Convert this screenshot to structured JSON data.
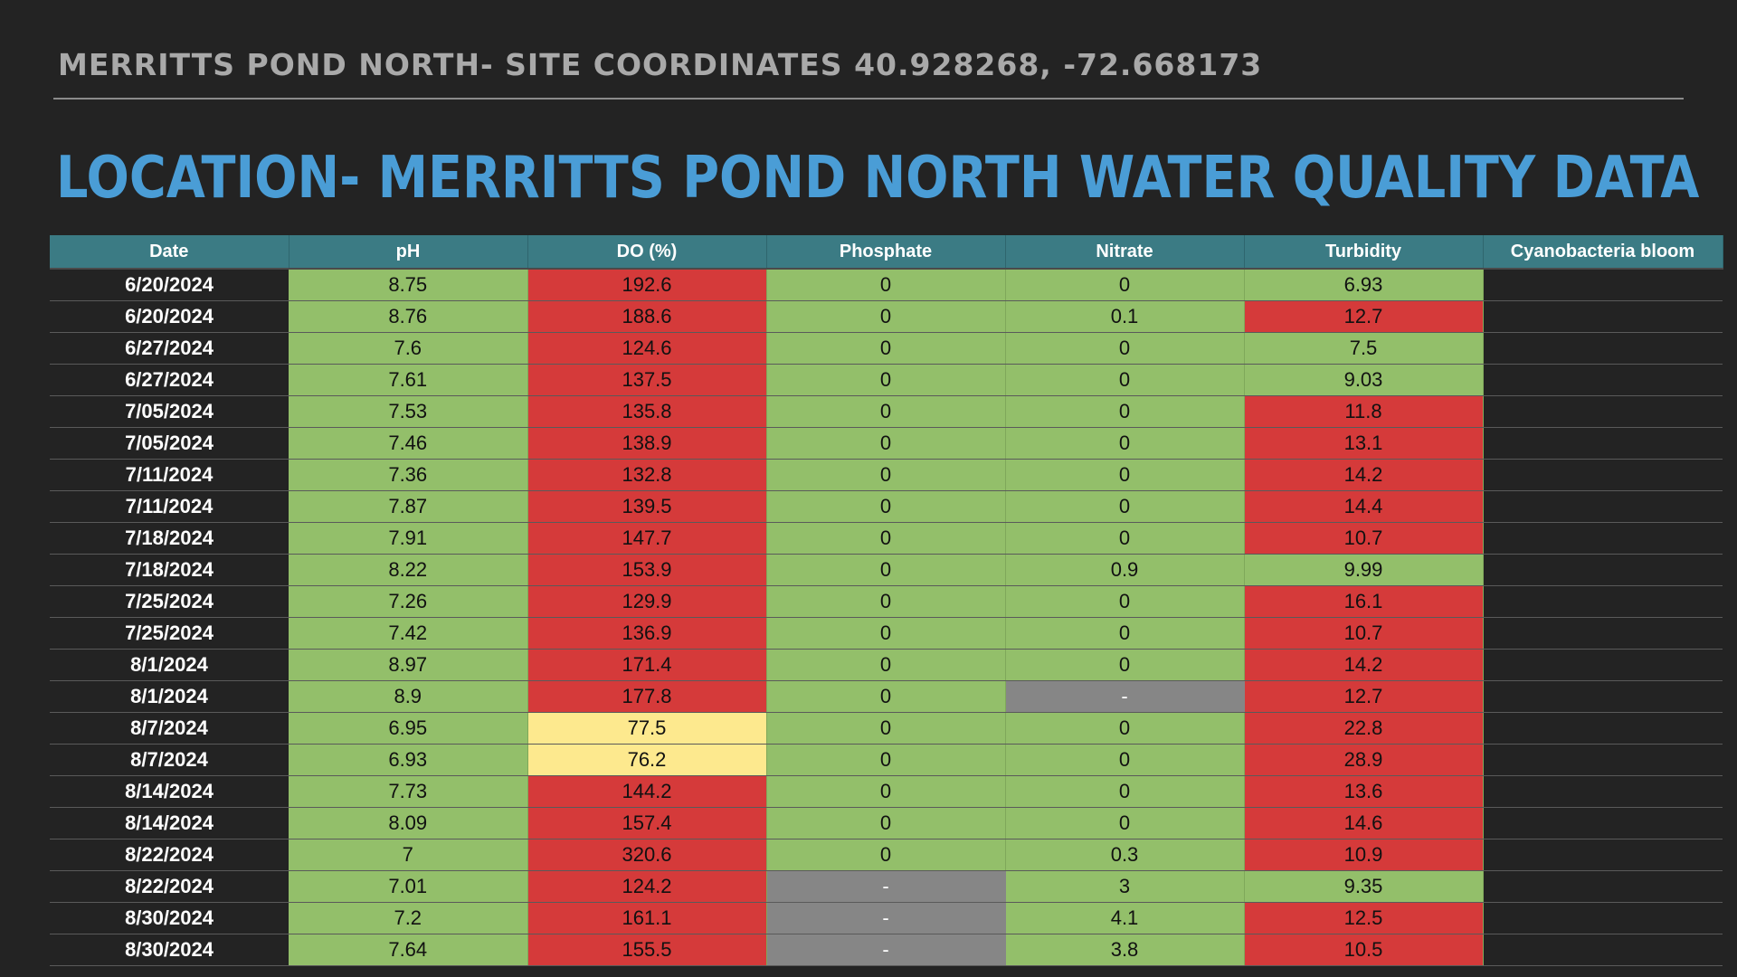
{
  "header": {
    "subtitle": "MERRITTS POND NORTH- SITE COORDINATES 40.928268, -72.668173",
    "title": "LOCATION- MERRITTS POND NORTH WATER QUALITY DATA"
  },
  "colors": {
    "good": "#93bf6a",
    "bad": "#d53a3a",
    "warning": "#fde98e",
    "no_data": "#868686",
    "header_bg": "#3b7b84",
    "title": "#4a9dd6"
  },
  "table": {
    "columns": [
      "Date",
      "pH",
      "DO (%)",
      "Phosphate",
      "Nitrate",
      "Turbidity",
      "Cyanobacteria bloom"
    ],
    "rows": [
      {
        "date": "6/20/2024",
        "ph": "8.75",
        "do": "192.6",
        "phosphate": "0",
        "nitrate": "0",
        "turbidity": "6.93",
        "bloom": "",
        "status": [
          "g",
          "r",
          "g",
          "g",
          "g"
        ]
      },
      {
        "date": "6/20/2024",
        "ph": "8.76",
        "do": "188.6",
        "phosphate": "0",
        "nitrate": "0.1",
        "turbidity": "12.7",
        "bloom": "",
        "status": [
          "g",
          "r",
          "g",
          "g",
          "r"
        ]
      },
      {
        "date": "6/27/2024",
        "ph": "7.6",
        "do": "124.6",
        "phosphate": "0",
        "nitrate": "0",
        "turbidity": "7.5",
        "bloom": "",
        "status": [
          "g",
          "r",
          "g",
          "g",
          "g"
        ]
      },
      {
        "date": "6/27/2024",
        "ph": "7.61",
        "do": "137.5",
        "phosphate": "0",
        "nitrate": "0",
        "turbidity": "9.03",
        "bloom": "",
        "status": [
          "g",
          "r",
          "g",
          "g",
          "g"
        ]
      },
      {
        "date": "7/05/2024",
        "ph": "7.53",
        "do": "135.8",
        "phosphate": "0",
        "nitrate": "0",
        "turbidity": "11.8",
        "bloom": "",
        "status": [
          "g",
          "r",
          "g",
          "g",
          "r"
        ]
      },
      {
        "date": "7/05/2024",
        "ph": "7.46",
        "do": "138.9",
        "phosphate": "0",
        "nitrate": "0",
        "turbidity": "13.1",
        "bloom": "",
        "status": [
          "g",
          "r",
          "g",
          "g",
          "r"
        ]
      },
      {
        "date": "7/11/2024",
        "ph": "7.36",
        "do": "132.8",
        "phosphate": "0",
        "nitrate": "0",
        "turbidity": "14.2",
        "bloom": "",
        "status": [
          "g",
          "r",
          "g",
          "g",
          "r"
        ]
      },
      {
        "date": "7/11/2024",
        "ph": "7.87",
        "do": "139.5",
        "phosphate": "0",
        "nitrate": "0",
        "turbidity": "14.4",
        "bloom": "",
        "status": [
          "g",
          "r",
          "g",
          "g",
          "r"
        ]
      },
      {
        "date": "7/18/2024",
        "ph": "7.91",
        "do": "147.7",
        "phosphate": "0",
        "nitrate": "0",
        "turbidity": "10.7",
        "bloom": "",
        "status": [
          "g",
          "r",
          "g",
          "g",
          "r"
        ]
      },
      {
        "date": "7/18/2024",
        "ph": "8.22",
        "do": "153.9",
        "phosphate": "0",
        "nitrate": "0.9",
        "turbidity": "9.99",
        "bloom": "",
        "status": [
          "g",
          "r",
          "g",
          "g",
          "g"
        ]
      },
      {
        "date": "7/25/2024",
        "ph": "7.26",
        "do": "129.9",
        "phosphate": "0",
        "nitrate": "0",
        "turbidity": "16.1",
        "bloom": "",
        "status": [
          "g",
          "r",
          "g",
          "g",
          "r"
        ]
      },
      {
        "date": "7/25/2024",
        "ph": "7.42",
        "do": "136.9",
        "phosphate": "0",
        "nitrate": "0",
        "turbidity": "10.7",
        "bloom": "",
        "status": [
          "g",
          "r",
          "g",
          "g",
          "r"
        ]
      },
      {
        "date": "8/1/2024",
        "ph": "8.97",
        "do": "171.4",
        "phosphate": "0",
        "nitrate": "0",
        "turbidity": "14.2",
        "bloom": "",
        "status": [
          "g",
          "r",
          "g",
          "g",
          "r"
        ]
      },
      {
        "date": "8/1/2024",
        "ph": "8.9",
        "do": "177.8",
        "phosphate": "0",
        "nitrate": "-",
        "turbidity": "12.7",
        "bloom": "",
        "status": [
          "g",
          "r",
          "g",
          "n",
          "r"
        ]
      },
      {
        "date": "8/7/2024",
        "ph": "6.95",
        "do": "77.5",
        "phosphate": "0",
        "nitrate": "0",
        "turbidity": "22.8",
        "bloom": "",
        "status": [
          "g",
          "y",
          "g",
          "g",
          "r"
        ]
      },
      {
        "date": "8/7/2024",
        "ph": "6.93",
        "do": "76.2",
        "phosphate": "0",
        "nitrate": "0",
        "turbidity": "28.9",
        "bloom": "",
        "status": [
          "g",
          "y",
          "g",
          "g",
          "r"
        ]
      },
      {
        "date": "8/14/2024",
        "ph": "7.73",
        "do": "144.2",
        "phosphate": "0",
        "nitrate": "0",
        "turbidity": "13.6",
        "bloom": "",
        "status": [
          "g",
          "r",
          "g",
          "g",
          "r"
        ]
      },
      {
        "date": "8/14/2024",
        "ph": "8.09",
        "do": "157.4",
        "phosphate": "0",
        "nitrate": "0",
        "turbidity": "14.6",
        "bloom": "",
        "status": [
          "g",
          "r",
          "g",
          "g",
          "r"
        ]
      },
      {
        "date": "8/22/2024",
        "ph": "7",
        "do": "320.6",
        "phosphate": "0",
        "nitrate": "0.3",
        "turbidity": "10.9",
        "bloom": "",
        "status": [
          "g",
          "r",
          "g",
          "g",
          "r"
        ]
      },
      {
        "date": "8/22/2024",
        "ph": "7.01",
        "do": "124.2",
        "phosphate": "-",
        "nitrate": "3",
        "turbidity": "9.35",
        "bloom": "",
        "status": [
          "g",
          "r",
          "n",
          "g",
          "g"
        ]
      },
      {
        "date": "8/30/2024",
        "ph": "7.2",
        "do": "161.1",
        "phosphate": "-",
        "nitrate": "4.1",
        "turbidity": "12.5",
        "bloom": "",
        "status": [
          "g",
          "r",
          "n",
          "g",
          "r"
        ]
      },
      {
        "date": "8/30/2024",
        "ph": "7.64",
        "do": "155.5",
        "phosphate": "-",
        "nitrate": "3.8",
        "turbidity": "10.5",
        "bloom": "",
        "status": [
          "g",
          "r",
          "n",
          "g",
          "r"
        ]
      }
    ]
  }
}
